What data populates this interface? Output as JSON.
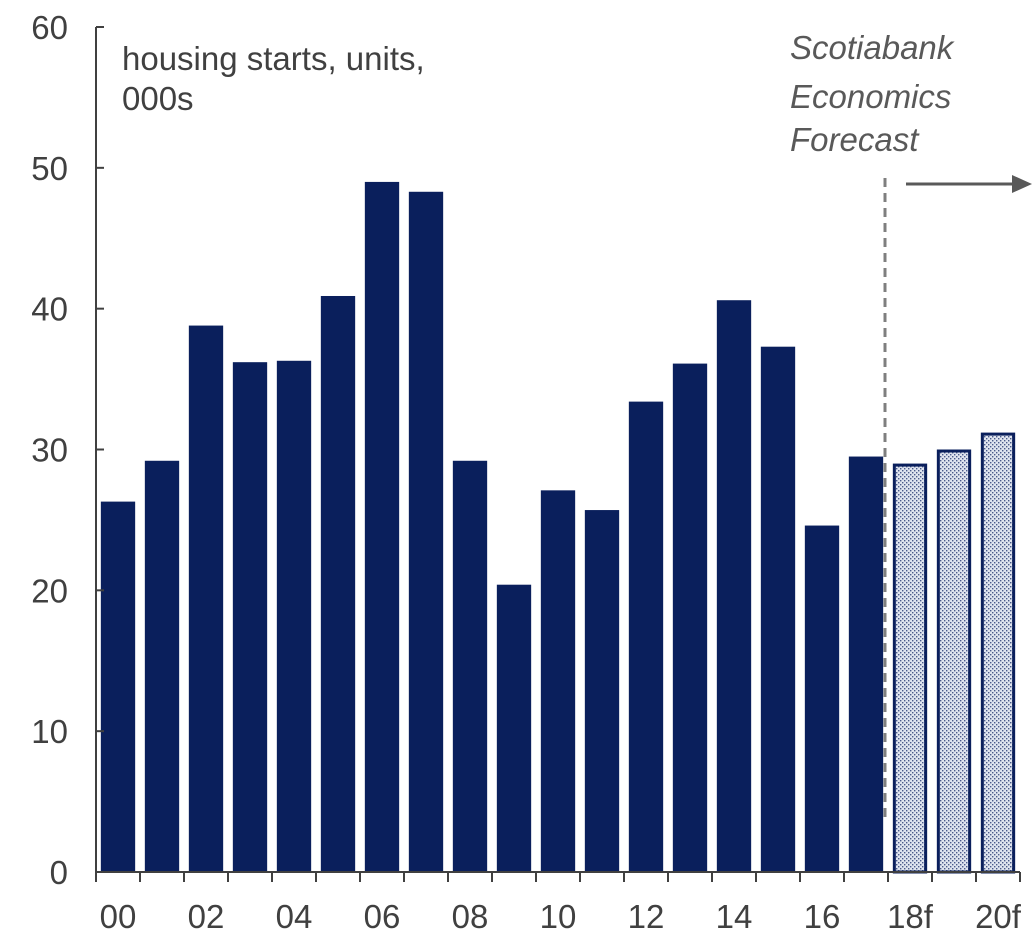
{
  "chart_data": {
    "type": "bar",
    "y_unit_label": [
      "housing starts, units,",
      "000s"
    ],
    "categories": [
      "00",
      "01",
      "02",
      "03",
      "04",
      "05",
      "06",
      "07",
      "08",
      "09",
      "10",
      "11",
      "12",
      "13",
      "14",
      "15",
      "16",
      "17",
      "18f",
      "19f",
      "20f"
    ],
    "x_tick_labels": [
      "00",
      "02",
      "04",
      "06",
      "08",
      "10",
      "12",
      "14",
      "16",
      "18f",
      "20f"
    ],
    "values": [
      26.3,
      29.2,
      38.8,
      36.2,
      36.3,
      40.9,
      49.0,
      48.3,
      29.2,
      20.4,
      27.1,
      25.7,
      33.4,
      36.1,
      40.6,
      37.3,
      24.6,
      29.5,
      29.0,
      30.0,
      31.2
    ],
    "forecast": [
      false,
      false,
      false,
      false,
      false,
      false,
      false,
      false,
      false,
      false,
      false,
      false,
      false,
      false,
      false,
      false,
      false,
      false,
      true,
      true,
      true
    ],
    "ylim": [
      0,
      60
    ],
    "yticks": [
      0,
      10,
      20,
      30,
      40,
      50,
      60
    ],
    "annotation": [
      "Scotiabank",
      "Economics",
      "Forecast"
    ],
    "grid": false,
    "colors": {
      "actual": "#0a1f5c",
      "forecast_fill": "#c9d0e3",
      "forecast_outline": "#0a1f5c",
      "axis": "#404040",
      "divider": "#7f7f7f"
    }
  }
}
